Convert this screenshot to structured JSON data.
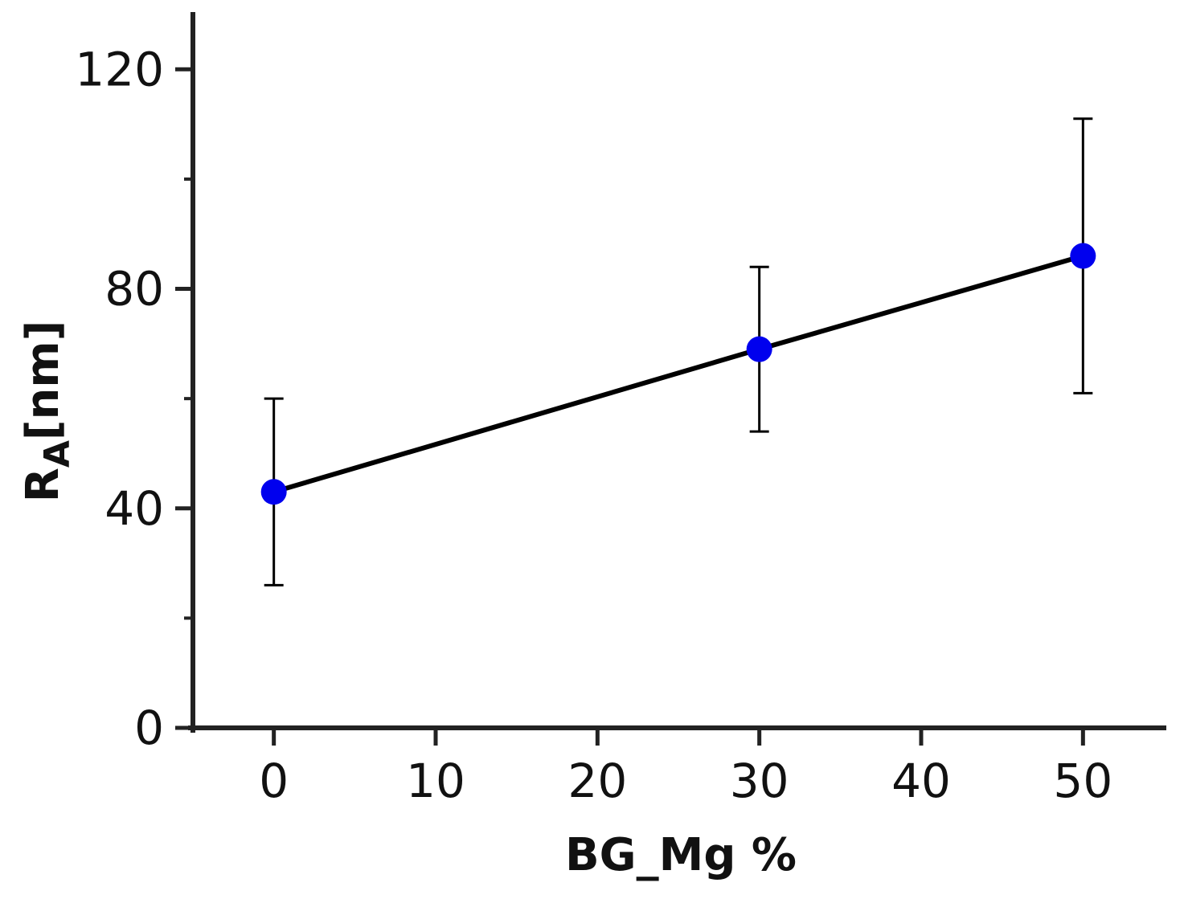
{
  "chart_data": {
    "type": "line",
    "title": "",
    "xlabel": "BG_Mg %",
    "ylabel": {
      "main": "R",
      "subscript": "A",
      "unit": "[nm]"
    },
    "xlim": [
      -5,
      55
    ],
    "ylim": [
      0,
      130
    ],
    "x_ticks": [
      0,
      10,
      20,
      30,
      40,
      50
    ],
    "y_ticks": [
      0,
      40,
      80,
      120
    ],
    "y_minor_ticks": [
      20,
      60,
      100
    ],
    "grid": false,
    "legend": "none",
    "series": [
      {
        "x": [
          0,
          30,
          50
        ],
        "y": [
          43,
          69,
          86
        ],
        "error": [
          17,
          15,
          25
        ],
        "marker_color": "#0000ee",
        "line_color": "#000000"
      }
    ]
  }
}
